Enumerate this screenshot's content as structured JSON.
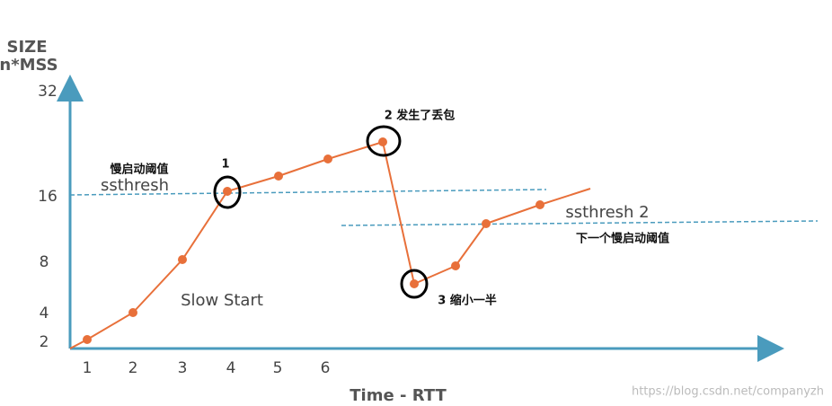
{
  "axes": {
    "y_title": [
      "SIZE",
      "n*MSS"
    ],
    "y_labels": [
      "32",
      "16",
      "8",
      "4",
      "2"
    ],
    "x_labels": [
      "1",
      "2",
      "3",
      "4",
      "5",
      "6"
    ],
    "x_title": "Time - RTT"
  },
  "annotations": {
    "phase": "Slow Start",
    "threshold_cn": "慢启动阈值",
    "threshold": "ssthresh",
    "point_1": "1",
    "point_2": "2 发生了丢包",
    "point_3": "3 缩小一半",
    "threshold_2": "ssthresh 2",
    "threshold_2_cn": "下一个慢启动阈值"
  },
  "watermark": "https://blog.csdn.net/companyzh"
}
